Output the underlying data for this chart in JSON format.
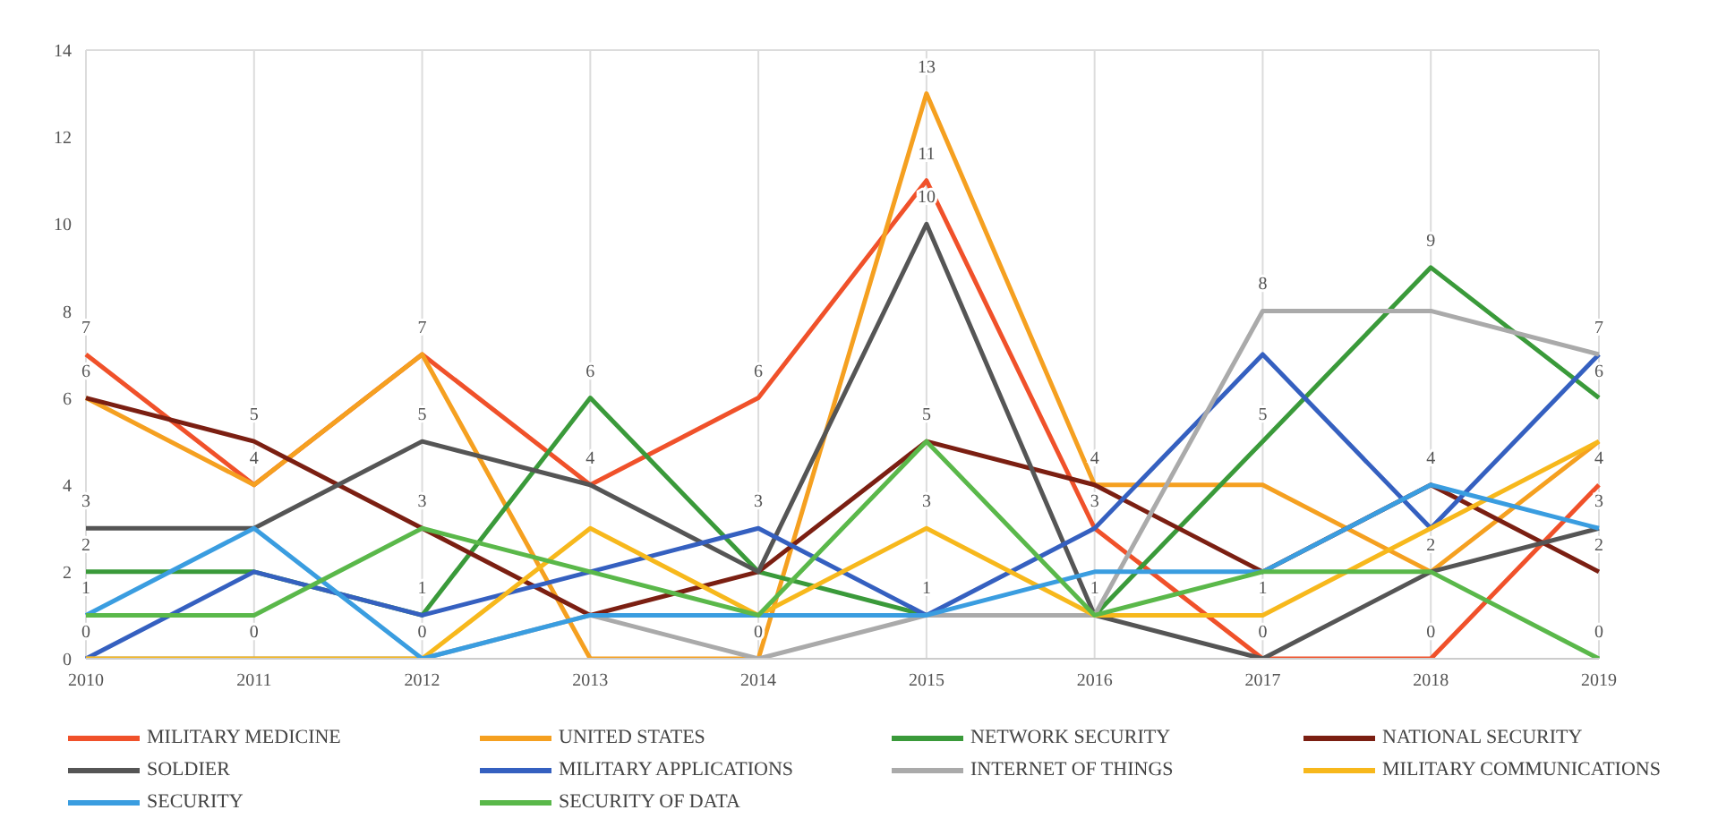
{
  "chart_data": {
    "type": "line",
    "categories": [
      "2010",
      "2011",
      "2012",
      "2013",
      "2014",
      "2015",
      "2016",
      "2017",
      "2018",
      "2019"
    ],
    "series": [
      {
        "name": "MILITARY MEDICINE",
        "color": "#f0512a",
        "values": [
          7,
          4,
          7,
          4,
          6,
          11,
          3,
          0,
          0,
          4
        ],
        "value_labels": [
          "7",
          null,
          null,
          "4",
          "6",
          "11",
          null,
          null,
          "0",
          "4"
        ]
      },
      {
        "name": "UNITED STATES",
        "color": "#f5a020",
        "values": [
          6,
          4,
          7,
          0,
          0,
          13,
          4,
          4,
          2,
          5
        ],
        "value_labels": [
          null,
          "4",
          "7",
          null,
          null,
          "13",
          "4",
          null,
          "2",
          null
        ]
      },
      {
        "name": "NETWORK SECURITY",
        "color": "#3a9a3a",
        "values": [
          2,
          2,
          1,
          6,
          2,
          1,
          1,
          5,
          9,
          6
        ],
        "value_labels": [
          "2",
          null,
          "1",
          "6",
          null,
          null,
          null,
          "5",
          "9",
          "6"
        ]
      },
      {
        "name": "NATIONAL SECURITY",
        "color": "#7b1f12",
        "values": [
          6,
          5,
          3,
          1,
          2,
          5,
          4,
          2,
          4,
          2
        ],
        "value_labels": [
          "6",
          "5",
          null,
          null,
          null,
          "5",
          null,
          null,
          "4",
          "2"
        ]
      },
      {
        "name": "SOLDIER",
        "color": "#555555",
        "values": [
          3,
          3,
          5,
          4,
          2,
          10,
          1,
          0,
          2,
          3
        ],
        "value_labels": [
          "3",
          null,
          "5",
          null,
          null,
          "10",
          "1",
          "0",
          null,
          "3"
        ]
      },
      {
        "name": "MILITARY APPLICATIONS",
        "color": "#3560c0",
        "values": [
          0,
          2,
          1,
          2,
          3,
          1,
          3,
          7,
          3,
          7
        ],
        "value_labels": [
          "0",
          null,
          null,
          null,
          "3",
          "1",
          "3",
          null,
          null,
          null
        ]
      },
      {
        "name": "INTERNET OF THINGS",
        "color": "#aaaaaa",
        "values": [
          0,
          0,
          0,
          1,
          0,
          1,
          1,
          8,
          8,
          7
        ],
        "value_labels": [
          null,
          "0",
          null,
          null,
          "0",
          null,
          null,
          "8",
          null,
          "7"
        ]
      },
      {
        "name": "MILITARY COMMUNICATIONS",
        "color": "#f7b81c",
        "values": [
          0,
          0,
          0,
          3,
          1,
          3,
          1,
          1,
          3,
          5
        ],
        "value_labels": [
          null,
          null,
          "0",
          null,
          null,
          "3",
          null,
          "1",
          null,
          null
        ]
      },
      {
        "name": "SECURITY",
        "color": "#3a9de0",
        "values": [
          1,
          3,
          0,
          1,
          1,
          1,
          2,
          2,
          4,
          3
        ]
      },
      {
        "name": "SECURITY OF DATA",
        "color": "#5ab84a",
        "values": [
          1,
          1,
          3,
          2,
          1,
          5,
          1,
          2,
          2,
          0
        ],
        "value_labels": [
          "1",
          null,
          "3",
          null,
          null,
          null,
          null,
          null,
          null,
          "0"
        ]
      }
    ],
    "ylim": [
      0,
      14
    ],
    "yticks": [
      0,
      2,
      4,
      6,
      8,
      10,
      12,
      14
    ],
    "grid": true,
    "legend": "bottom",
    "marker": "none",
    "line_style": "solid"
  }
}
